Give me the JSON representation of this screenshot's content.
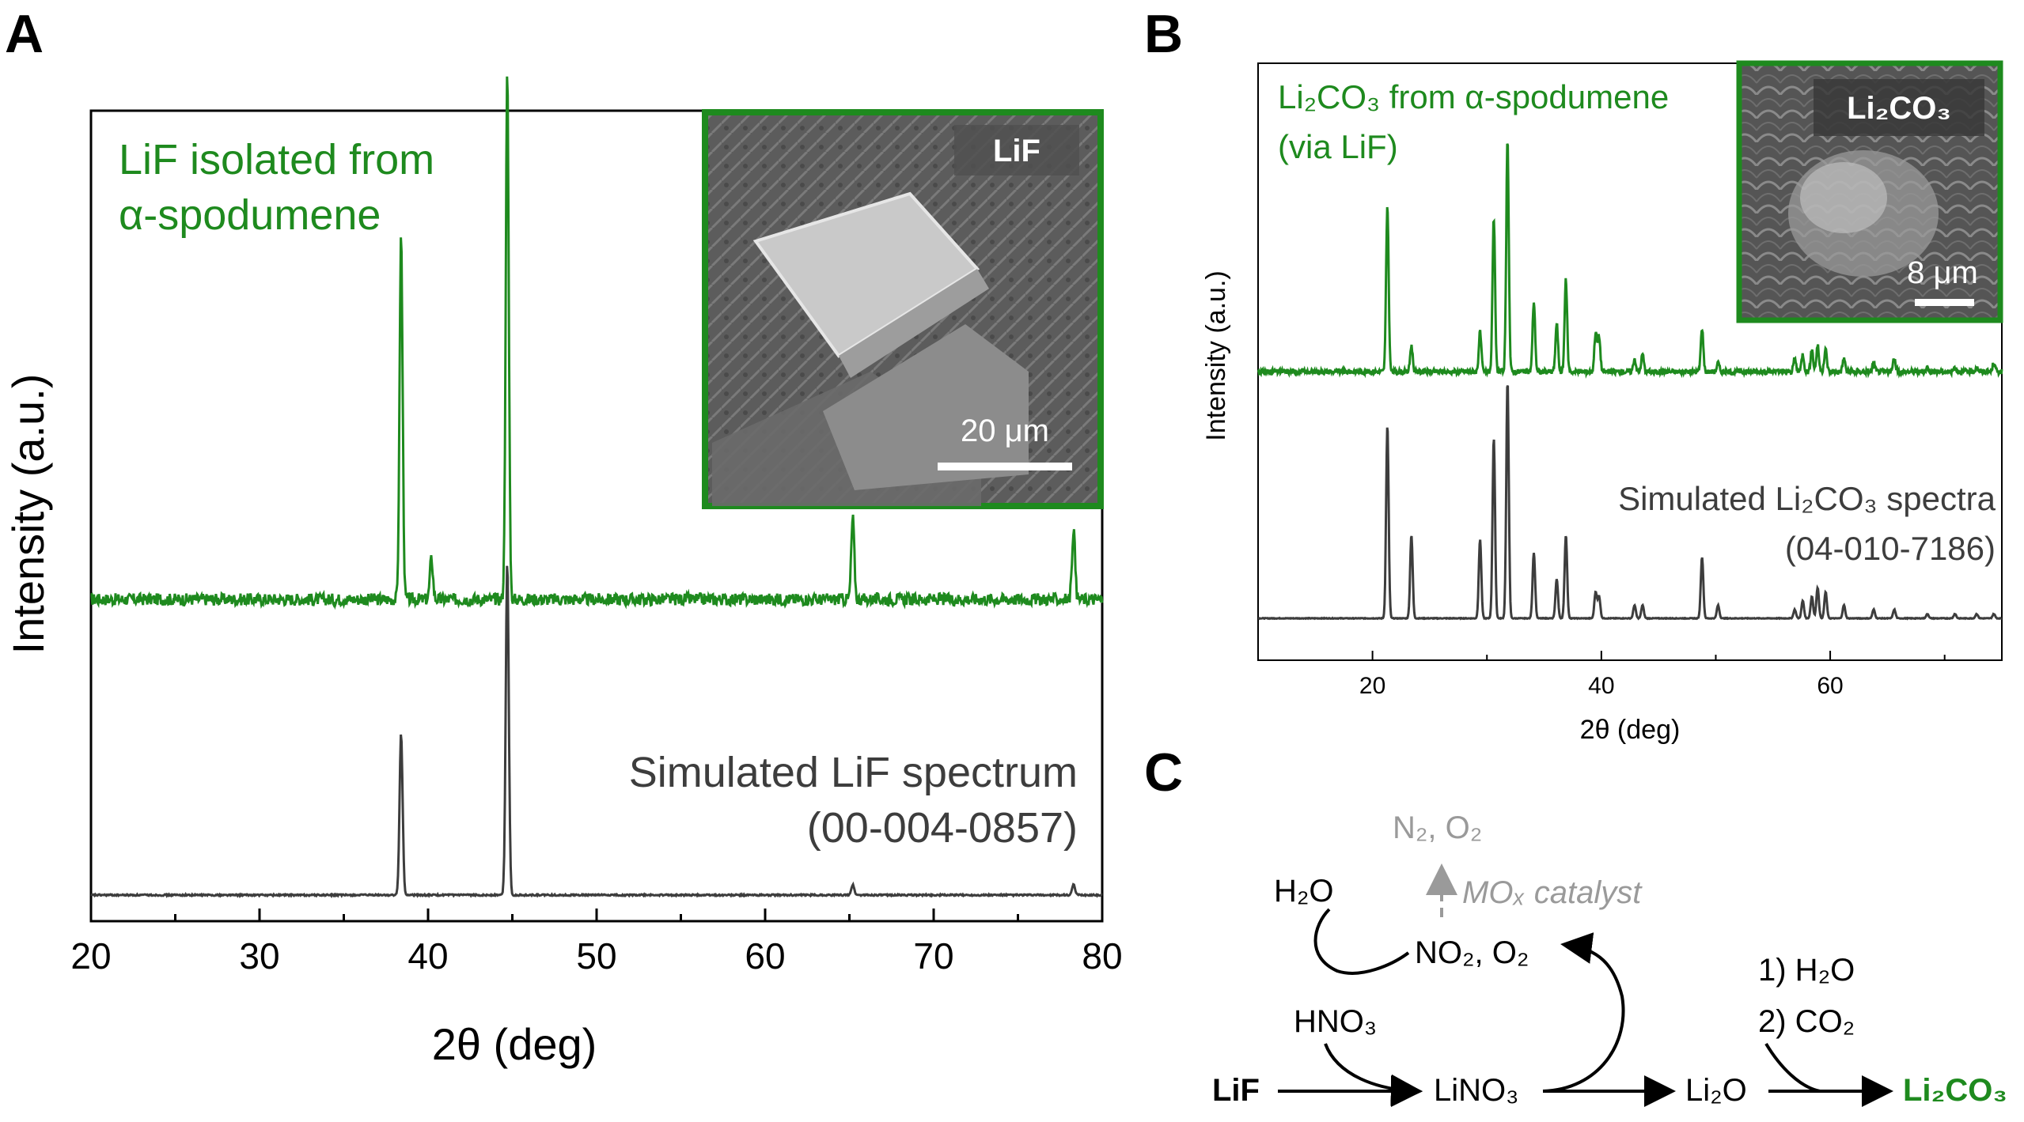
{
  "panels": {
    "a": "A",
    "b": "B",
    "c": "C"
  },
  "chart_data": [
    {
      "type": "line",
      "panel": "A",
      "xlabel": "2θ (deg)",
      "ylabel": "Intensity (a.u.)",
      "xlim": [
        20,
        80
      ],
      "xticks": [
        "20",
        "30",
        "40",
        "50",
        "60",
        "70",
        "80"
      ],
      "series": [
        {
          "name": "LiF isolated from α-spodumene",
          "label_lines": [
            "LiF isolated from",
            "α-spodumene"
          ],
          "color": "#1e8a1e",
          "peaks": [
            {
              "x": 38.4,
              "y": 0.36
            },
            {
              "x": 40.2,
              "y": 0.04
            },
            {
              "x": 44.7,
              "y": 0.52
            },
            {
              "x": 65.2,
              "y": 0.08
            },
            {
              "x": 78.3,
              "y": 0.07
            }
          ]
        },
        {
          "name": "Simulated LiF spectrum (00-004-0857)",
          "label_lines": [
            "Simulated LiF spectrum",
            "(00-004-0857)"
          ],
          "color": "#3d3d3d",
          "peaks": [
            {
              "x": 38.4,
              "y": 0.16
            },
            {
              "x": 44.7,
              "y": 0.33
            },
            {
              "x": 65.2,
              "y": 0.01
            },
            {
              "x": 78.3,
              "y": 0.01
            }
          ]
        }
      ],
      "inset": {
        "label": "LiF",
        "scale_bar": "20 μm"
      }
    },
    {
      "type": "line",
      "panel": "B",
      "xlabel": "2θ (deg)",
      "ylabel": "Intensity (a.u.)",
      "xlim": [
        10,
        75
      ],
      "xticks": [
        "20",
        "40",
        "60"
      ],
      "series": [
        {
          "name": "Li2CO3 from α-spodumene (via LiF)",
          "label_lines": [
            "Li₂CO₃ from α-spodumene",
            "(via LiF)"
          ],
          "color": "#1e8a1e",
          "peaks": [
            {
              "x": 21.3,
              "y": 0.38
            },
            {
              "x": 23.4,
              "y": 0.06
            },
            {
              "x": 29.4,
              "y": 0.09
            },
            {
              "x": 30.6,
              "y": 0.35
            },
            {
              "x": 31.8,
              "y": 0.53
            },
            {
              "x": 34.1,
              "y": 0.16
            },
            {
              "x": 36.1,
              "y": 0.11
            },
            {
              "x": 36.9,
              "y": 0.21
            },
            {
              "x": 39.5,
              "y": 0.09
            },
            {
              "x": 39.8,
              "y": 0.08
            },
            {
              "x": 42.9,
              "y": 0.03
            },
            {
              "x": 43.6,
              "y": 0.04
            },
            {
              "x": 48.8,
              "y": 0.1
            },
            {
              "x": 50.2,
              "y": 0.02
            },
            {
              "x": 56.9,
              "y": 0.03
            },
            {
              "x": 57.6,
              "y": 0.04
            },
            {
              "x": 58.4,
              "y": 0.05
            },
            {
              "x": 58.9,
              "y": 0.06
            },
            {
              "x": 59.6,
              "y": 0.05
            },
            {
              "x": 61.2,
              "y": 0.03
            },
            {
              "x": 63.8,
              "y": 0.02
            },
            {
              "x": 65.6,
              "y": 0.03
            },
            {
              "x": 68.5,
              "y": 0.01
            },
            {
              "x": 70.9,
              "y": 0.01
            },
            {
              "x": 72.8,
              "y": 0.01
            },
            {
              "x": 74.3,
              "y": 0.02
            }
          ]
        },
        {
          "name": "Simulated Li2CO3 spectra (04-010-7186)",
          "label_lines": [
            "Simulated Li₂CO₃ spectra",
            "(04-010-7186)"
          ],
          "color": "#3d3d3d",
          "peaks": [
            {
              "x": 21.3,
              "y": 0.44
            },
            {
              "x": 23.4,
              "y": 0.19
            },
            {
              "x": 29.4,
              "y": 0.18
            },
            {
              "x": 30.6,
              "y": 0.41
            },
            {
              "x": 31.8,
              "y": 0.54
            },
            {
              "x": 34.1,
              "y": 0.15
            },
            {
              "x": 36.1,
              "y": 0.09
            },
            {
              "x": 36.9,
              "y": 0.19
            },
            {
              "x": 39.5,
              "y": 0.06
            },
            {
              "x": 39.8,
              "y": 0.05
            },
            {
              "x": 42.9,
              "y": 0.03
            },
            {
              "x": 43.6,
              "y": 0.03
            },
            {
              "x": 48.8,
              "y": 0.14
            },
            {
              "x": 50.2,
              "y": 0.03
            },
            {
              "x": 56.9,
              "y": 0.02
            },
            {
              "x": 57.6,
              "y": 0.04
            },
            {
              "x": 58.4,
              "y": 0.05
            },
            {
              "x": 58.9,
              "y": 0.07
            },
            {
              "x": 59.6,
              "y": 0.06
            },
            {
              "x": 61.2,
              "y": 0.03
            },
            {
              "x": 63.8,
              "y": 0.02
            },
            {
              "x": 65.6,
              "y": 0.02
            },
            {
              "x": 68.5,
              "y": 0.01
            },
            {
              "x": 70.9,
              "y": 0.01
            },
            {
              "x": 72.8,
              "y": 0.01
            },
            {
              "x": 74.3,
              "y": 0.01
            }
          ]
        }
      ],
      "inset": {
        "label": "Li₂CO₃",
        "scale_bar": "8 μm"
      }
    }
  ],
  "scheme": {
    "n2_o2": "N₂, O₂",
    "catalyst": "MOₓ catalyst",
    "h2o": "H₂O",
    "no2_o2": "NO₂, O₂",
    "hno3": "HNO₃",
    "lif": "LiF",
    "lino3": "LiNO₃",
    "li2o": "Li₂O",
    "li2co3": "Li₂CO₃",
    "step1": "1) H₂O",
    "step2": "2) CO₂"
  }
}
